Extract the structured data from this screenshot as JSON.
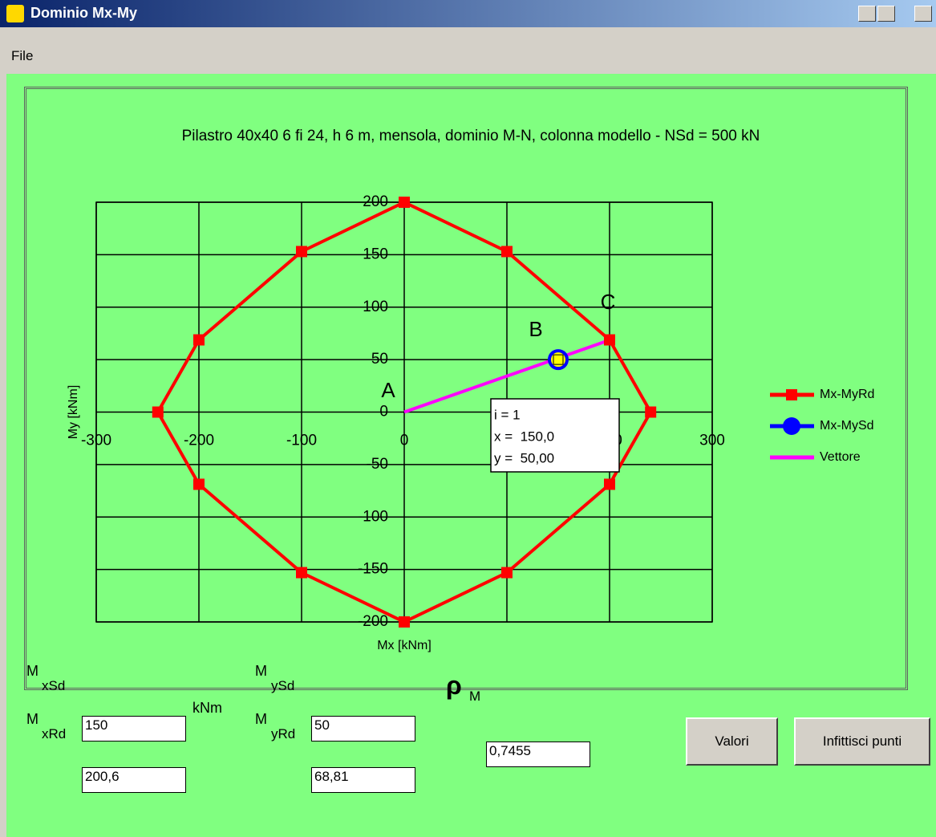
{
  "window": {
    "title": "Dominio Mx-My"
  },
  "menu": [
    "File"
  ],
  "chart_data": {
    "type": "line",
    "title": "Pilastro 40x40 6 fi 24, h 6 m, mensola, dominio M-N, colonna modello - NSd = 500 kN",
    "xlabel": "Mx [kNm]",
    "ylabel": "My [kNm]",
    "xlim": [
      -300,
      300
    ],
    "ylim": [
      -200,
      200
    ],
    "xticks": [
      -300,
      -200,
      -100,
      0,
      100,
      200,
      300
    ],
    "yticks": [
      -200,
      -150,
      -100,
      -50,
      0,
      50,
      100,
      150,
      200
    ],
    "grid": true,
    "legend": "right",
    "series": [
      {
        "name": "Mx-MyRd",
        "color": "#ff0000",
        "marker": "square",
        "x": [
          0,
          100,
          200,
          240,
          200,
          100,
          0,
          -100,
          -200,
          -240,
          -200,
          -100,
          0
        ],
        "values": [
          200,
          153,
          68.81,
          0,
          -68.81,
          -153,
          -200,
          -153,
          -68.81,
          0,
          68.81,
          153,
          200
        ]
      },
      {
        "name": "Mx-MySd",
        "color": "#0000ff",
        "marker": "circle",
        "x": [
          150
        ],
        "values": [
          50
        ]
      },
      {
        "name": "Vettore",
        "color": "#ff00ff",
        "marker": "none",
        "x": [
          0,
          200.6
        ],
        "values": [
          0,
          68.81
        ]
      }
    ],
    "annotations": [
      {
        "text": "A"
      },
      {
        "text": "B"
      },
      {
        "text": "C"
      }
    ],
    "tooltip": [
      "i = 1",
      "x =  150,0",
      "y =  50,00"
    ]
  },
  "form": {
    "mxsd": {
      "label": "M",
      "sub": "xSd",
      "value": "150",
      "unit": "kNm"
    },
    "mysd": {
      "label": "M",
      "sub": "ySd",
      "value": "50"
    },
    "mxrd": {
      "label": "M",
      "sub": "xRd",
      "value": "200,6"
    },
    "myrd": {
      "label": "M",
      "sub": "yRd",
      "value": "68,81"
    },
    "rho": {
      "label": "ρ",
      "sub": "M",
      "value": "0,7455"
    }
  },
  "buttons": [
    "Valori",
    "Infittisci punti"
  ]
}
